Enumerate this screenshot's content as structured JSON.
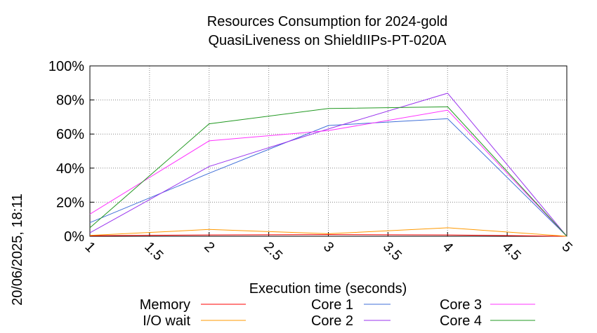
{
  "chart_data": {
    "type": "line",
    "title_line1": "Resources Consumption for 2024-gold",
    "title_line2": "QuasiLiveness on ShieldIIPs-PT-020A",
    "xlabel": "Execution time (seconds)",
    "ylabel": "",
    "side_label": "20/06/2025, 18:11",
    "xlim": [
      1,
      5
    ],
    "ylim": [
      0,
      100
    ],
    "x_ticks": [
      "1",
      "1.5",
      "2",
      "2.5",
      "3",
      "3.5",
      "4",
      "4.5",
      "5"
    ],
    "y_ticks": [
      "0%",
      "20%",
      "40%",
      "60%",
      "80%",
      "100%"
    ],
    "grid": true,
    "legend_position": "bottom",
    "series": [
      {
        "name": "Memory",
        "color": "#ff0000",
        "x": [
          1,
          2,
          3,
          4,
          5
        ],
        "y": [
          0.3,
          0.8,
          1.0,
          0.8,
          0
        ]
      },
      {
        "name": "I/O wait",
        "color": "#ff9900",
        "x": [
          1,
          2,
          3,
          4,
          5
        ],
        "y": [
          0.5,
          4.0,
          1.5,
          5.0,
          0
        ]
      },
      {
        "name": "Core 1",
        "color": "#3f6fd8",
        "x": [
          1,
          2,
          3,
          4,
          5
        ],
        "y": [
          8,
          37,
          65,
          69,
          0
        ]
      },
      {
        "name": "Core 2",
        "color": "#9933ee",
        "x": [
          1,
          2,
          3,
          4,
          5
        ],
        "y": [
          2,
          41,
          63,
          84,
          0
        ]
      },
      {
        "name": "Core 3",
        "color": "#ff33ff",
        "x": [
          1,
          2,
          3,
          4,
          5
        ],
        "y": [
          13,
          56,
          62,
          74,
          0
        ]
      },
      {
        "name": "Core 4",
        "color": "#229922",
        "x": [
          1,
          2,
          3,
          4,
          5
        ],
        "y": [
          5,
          66,
          75,
          76,
          0
        ]
      }
    ]
  }
}
